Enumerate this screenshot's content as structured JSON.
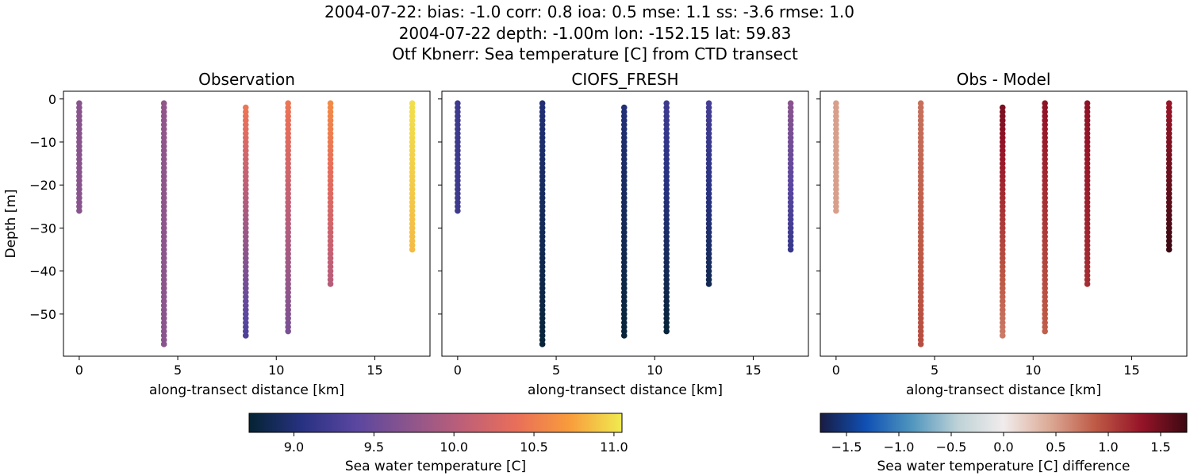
{
  "title_lines": [
    "2004-07-22: bias: -1.0  corr: 0.8  ioa: 0.5  mse: 1.1  ss: -3.6  rmse: 1.0",
    "2004-07-22 depth: -1.00m lon: -152.15 lat: 59.83",
    "Otf Kbnerr: Sea temperature [C] from CTD transect"
  ],
  "chart_data": [
    {
      "type": "scatter",
      "title": "Observation",
      "xlabel": "along-transect distance [km]",
      "ylabel": "Depth [m]",
      "xlim": [
        -0.8,
        17.8
      ],
      "ylim": [
        -59.8,
        1.8
      ],
      "xticks": [
        0,
        5,
        10,
        15
      ],
      "yticks": [
        0,
        -10,
        -20,
        -30,
        -40,
        -50
      ],
      "colormap": "thermal",
      "vmin": 8.72,
      "vmax": 11.05,
      "profiles": [
        {
          "x": 0.0,
          "depth_top": -1,
          "depth_bottom": -26,
          "values_top_bottom": [
            9.7,
            9.7
          ]
        },
        {
          "x": 4.3,
          "depth_top": -1,
          "depth_bottom": -57,
          "values_top_bottom": [
            9.75,
            9.7
          ]
        },
        {
          "x": 8.45,
          "depth_top": -2,
          "depth_bottom": -55,
          "values_top_bottom": [
            10.45,
            9.3
          ]
        },
        {
          "x": 10.6,
          "depth_top": -1,
          "depth_bottom": -54,
          "values_top_bottom": [
            10.45,
            9.6
          ]
        },
        {
          "x": 12.75,
          "depth_top": -1,
          "depth_bottom": -43,
          "values_top_bottom": [
            10.6,
            10.0
          ]
        },
        {
          "x": 16.9,
          "depth_top": -1,
          "depth_bottom": -35,
          "values_top_bottom": [
            11.0,
            10.85
          ]
        }
      ]
    },
    {
      "type": "scatter",
      "title": "CIOFS_FRESH",
      "xlabel": "along-transect distance [km]",
      "ylabel": "",
      "xlim": [
        -0.8,
        17.8
      ],
      "ylim": [
        -59.8,
        1.8
      ],
      "xticks": [
        0,
        5,
        10,
        15
      ],
      "yticks": [
        0,
        -10,
        -20,
        -30,
        -40,
        -50
      ],
      "colormap": "thermal",
      "vmin": 8.72,
      "vmax": 11.05,
      "profiles": [
        {
          "x": 0.0,
          "depth_top": -1,
          "depth_bottom": -26,
          "values_top_bottom": [
            9.2,
            9.2
          ]
        },
        {
          "x": 4.3,
          "depth_top": -1,
          "depth_bottom": -57,
          "values_top_bottom": [
            9.0,
            8.75
          ]
        },
        {
          "x": 8.45,
          "depth_top": -2,
          "depth_bottom": -55,
          "values_top_bottom": [
            9.0,
            8.75
          ]
        },
        {
          "x": 10.6,
          "depth_top": -1,
          "depth_bottom": -54,
          "values_top_bottom": [
            9.2,
            8.75
          ]
        },
        {
          "x": 12.75,
          "depth_top": -1,
          "depth_bottom": -43,
          "values_top_bottom": [
            9.25,
            8.85
          ]
        },
        {
          "x": 16.9,
          "depth_top": -1,
          "depth_bottom": -35,
          "values_top_bottom": [
            9.7,
            9.15
          ]
        }
      ]
    },
    {
      "type": "scatter",
      "title": "Obs - Model",
      "xlabel": "along-transect distance [km]",
      "ylabel": "",
      "xlim": [
        -0.8,
        17.8
      ],
      "ylim": [
        -59.8,
        1.8
      ],
      "xticks": [
        0,
        5,
        10,
        15
      ],
      "yticks": [
        0,
        -10,
        -20,
        -30,
        -40,
        -50
      ],
      "colormap": "balance",
      "vmin": -1.75,
      "vmax": 1.75,
      "profiles": [
        {
          "x": 0.0,
          "depth_top": -1,
          "depth_bottom": -26,
          "values_top_bottom": [
            0.5,
            0.5
          ]
        },
        {
          "x": 4.3,
          "depth_top": -1,
          "depth_bottom": -57,
          "values_top_bottom": [
            0.75,
            0.95
          ]
        },
        {
          "x": 8.45,
          "depth_top": -2,
          "depth_bottom": -55,
          "values_top_bottom": [
            1.45,
            0.7
          ]
        },
        {
          "x": 10.6,
          "depth_top": -1,
          "depth_bottom": -54,
          "values_top_bottom": [
            1.35,
            0.85
          ]
        },
        {
          "x": 12.75,
          "depth_top": -1,
          "depth_bottom": -43,
          "values_top_bottom": [
            1.35,
            1.15
          ]
        },
        {
          "x": 16.9,
          "depth_top": -1,
          "depth_bottom": -35,
          "values_top_bottom": [
            1.3,
            1.75
          ]
        }
      ]
    }
  ],
  "colorbars": [
    {
      "label": "Sea water temperature [C]",
      "colormap": "thermal",
      "vmin": 8.72,
      "vmax": 11.05,
      "ticks": [
        9.0,
        9.5,
        10.0,
        10.5,
        11.0
      ],
      "tick_labels": [
        "9.0",
        "9.5",
        "10.0",
        "10.5",
        "11.0"
      ]
    },
    {
      "label": "Sea water temperature [C] difference",
      "colormap": "balance",
      "vmin": -1.75,
      "vmax": 1.75,
      "ticks": [
        -1.5,
        -1.0,
        -0.5,
        0.0,
        0.5,
        1.0,
        1.5
      ],
      "tick_labels": [
        "−1.5",
        "−1.0",
        "−0.5",
        "0.0",
        "0.5",
        "1.0",
        "1.5"
      ]
    }
  ],
  "tick_label_text": {
    "x": [
      "0",
      "5",
      "10",
      "15"
    ],
    "y": [
      "0",
      "−10",
      "−20",
      "−30",
      "−40",
      "−50"
    ]
  }
}
